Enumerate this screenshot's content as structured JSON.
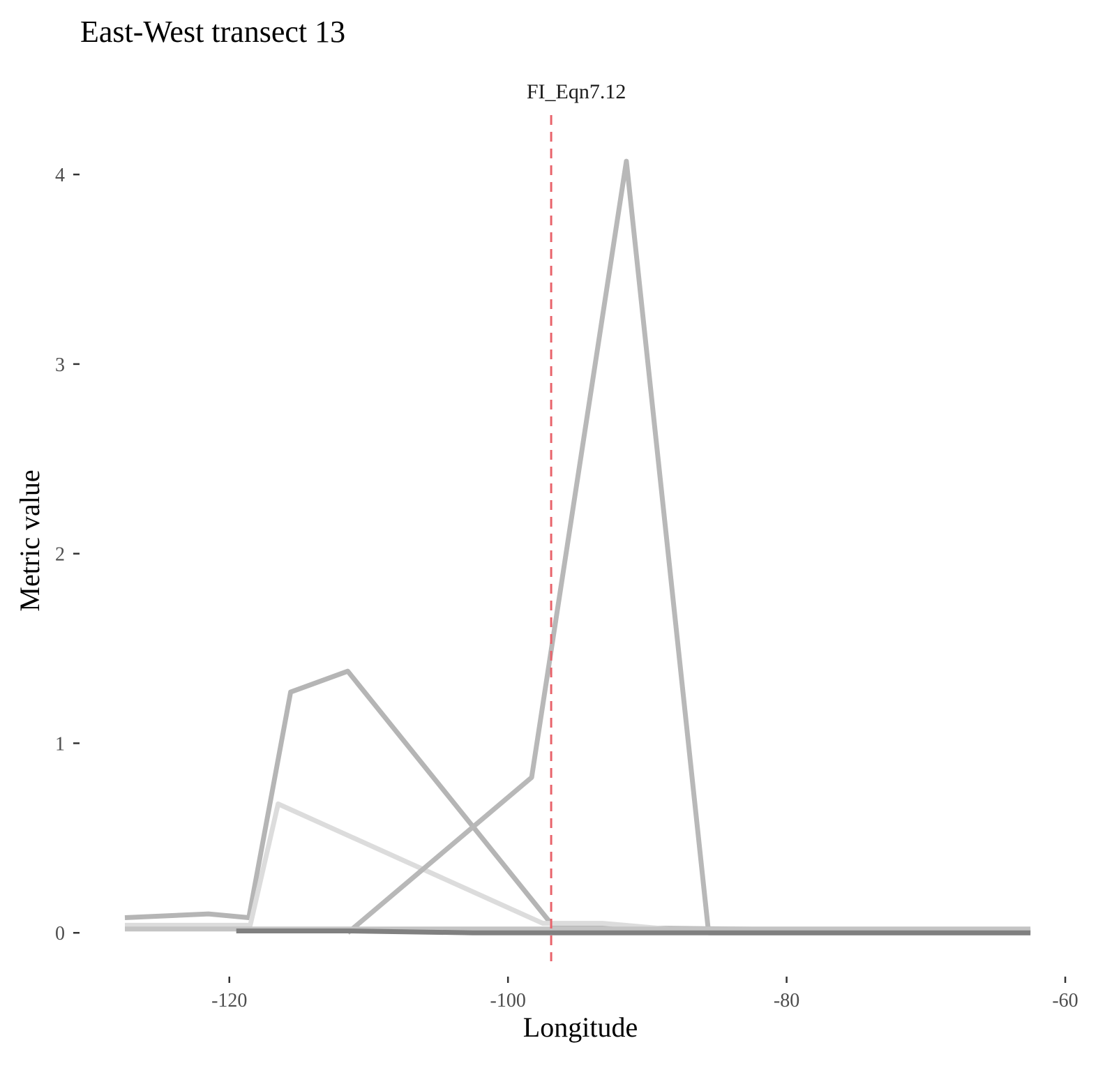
{
  "chart_data": {
    "type": "line",
    "title": "East-West transect 13",
    "xlabel": "Longitude",
    "ylabel": "Metric value",
    "xlim": [
      -128.6,
      -59.2
    ],
    "ylim": [
      -0.15,
      4.35
    ],
    "x_ticks": [
      -120,
      -100,
      -80,
      -60
    ],
    "x_tick_labels": [
      "-120",
      "-100",
      "-80",
      "-60"
    ],
    "y_ticks": [
      0,
      1,
      2,
      3,
      4
    ],
    "y_tick_labels": [
      "0",
      "1",
      "2",
      "3",
      "4"
    ],
    "grid": false,
    "legend": "none",
    "vline": {
      "x": -96.9,
      "label": "FI_Eqn7.12",
      "color": "#e8636b"
    },
    "series": [
      {
        "color": "#b5b5b5",
        "points": [
          [
            -127.5,
            0.08
          ],
          [
            -121.5,
            0.1
          ],
          [
            -118.6,
            0.08
          ],
          [
            -115.6,
            1.27
          ],
          [
            -111.5,
            1.38
          ],
          [
            -96.7,
            0.03
          ],
          [
            -70,
            0.01
          ],
          [
            -62.5,
            0.01
          ]
        ]
      },
      {
        "color": "#dcdcdc",
        "points": [
          [
            -127.5,
            0.04
          ],
          [
            -118.5,
            0.04
          ],
          [
            -116.5,
            0.68
          ],
          [
            -97.5,
            0.05
          ],
          [
            -93.2,
            0.05
          ],
          [
            -85.5,
            0.0
          ],
          [
            -62.5,
            0.0
          ]
        ]
      },
      {
        "color": "#b8b8b8",
        "points": [
          [
            -111.5,
            0.0
          ],
          [
            -98.3,
            0.82
          ],
          [
            -91.5,
            4.07
          ],
          [
            -85.6,
            0.0
          ],
          [
            -62.5,
            0.0
          ]
        ]
      },
      {
        "color": "#c4c4c4",
        "points": [
          [
            -127.5,
            0.02
          ],
          [
            -62.5,
            0.02
          ]
        ]
      },
      {
        "color": "#808080",
        "points": [
          [
            -119.5,
            0.01
          ],
          [
            -111.5,
            0.01
          ],
          [
            -102.5,
            0.0
          ],
          [
            -92.5,
            0.0
          ],
          [
            -62.5,
            0.0
          ]
        ]
      }
    ]
  }
}
